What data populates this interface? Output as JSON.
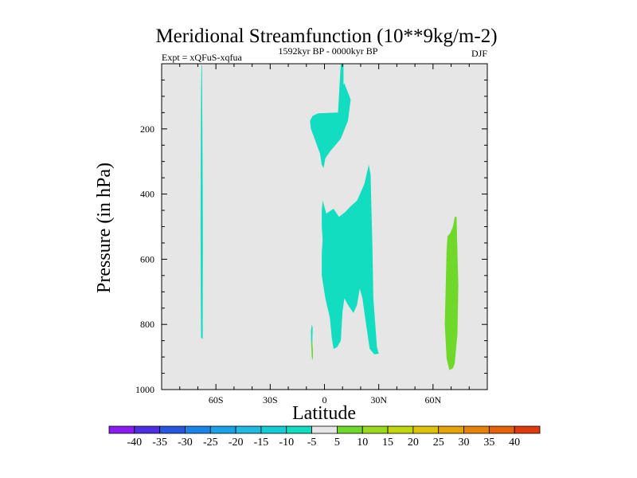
{
  "chart_data": {
    "type": "contour",
    "title": "Meridional Streamfunction (10**9kg/m-2)",
    "left_annotation": "Expt = xQFuS-xqfua",
    "center_annotation": "1592kyr BP - 0000kyr BP",
    "right_annotation": "DJF",
    "xlabel": "Latitude",
    "ylabel": "Pressure (in hPa)",
    "xlim": [
      -90,
      90
    ],
    "ylim": [
      1000,
      0
    ],
    "x_ticks": [
      {
        "value": -60,
        "label": "60S"
      },
      {
        "value": -30,
        "label": "30S"
      },
      {
        "value": 0,
        "label": "0"
      },
      {
        "value": 30,
        "label": "30N"
      },
      {
        "value": 60,
        "label": "60N"
      }
    ],
    "y_ticks": [
      {
        "value": 200,
        "label": "200"
      },
      {
        "value": 400,
        "label": "400"
      },
      {
        "value": 600,
        "label": "600"
      },
      {
        "value": 800,
        "label": "800"
      },
      {
        "value": 1000,
        "label": "1000"
      }
    ],
    "background_color": "#e6e6e6",
    "regions": [
      {
        "name": "neg-southern-narrow",
        "level": "-10 to -5",
        "color": "#13ddc0",
        "points": [
          [
            -68,
            5
          ],
          [
            -67.7,
            5
          ],
          [
            -67.5,
            180
          ],
          [
            -67.3,
            370
          ],
          [
            -67.2,
            560
          ],
          [
            -67.3,
            760
          ],
          [
            -67.3,
            845
          ],
          [
            -68.2,
            840
          ],
          [
            -68.4,
            700
          ],
          [
            -68.5,
            480
          ],
          [
            -68.4,
            260
          ],
          [
            -68.2,
            90
          ]
        ]
      },
      {
        "name": "neg-upper-tropics",
        "level": "-10 to -5",
        "color": "#13ddc0",
        "points": [
          [
            9,
            0
          ],
          [
            10.5,
            0
          ],
          [
            10.5,
            65
          ],
          [
            11,
            60
          ],
          [
            14.5,
            110
          ],
          [
            13,
            175
          ],
          [
            9,
            230
          ],
          [
            3,
            270
          ],
          [
            0.5,
            290
          ],
          [
            -0.5,
            320
          ],
          [
            -1.5,
            310
          ],
          [
            -2.5,
            275
          ],
          [
            -7.5,
            200
          ],
          [
            -8,
            175
          ],
          [
            -6.5,
            160
          ],
          [
            -3.5,
            152
          ],
          [
            7.5,
            150
          ]
        ]
      },
      {
        "name": "neg-lower-tropics",
        "level": "-10 to -5",
        "color": "#13ddc0",
        "points": [
          [
            -1.5,
            450
          ],
          [
            -1,
            420
          ],
          [
            1,
            460
          ],
          [
            5,
            445
          ],
          [
            8,
            470
          ],
          [
            11.5,
            455
          ],
          [
            14,
            440
          ],
          [
            18,
            420
          ],
          [
            22,
            370
          ],
          [
            24.5,
            310
          ],
          [
            25.5,
            340
          ],
          [
            26.5,
            560
          ],
          [
            27,
            720
          ],
          [
            29,
            870
          ],
          [
            30,
            890
          ],
          [
            27.5,
            892
          ],
          [
            25,
            875
          ],
          [
            23,
            800
          ],
          [
            21,
            720
          ],
          [
            19.5,
            690
          ],
          [
            18,
            740
          ],
          [
            16,
            765
          ],
          [
            13,
            740
          ],
          [
            11,
            720
          ],
          [
            10,
            760
          ],
          [
            9,
            850
          ],
          [
            7,
            870
          ],
          [
            5,
            875
          ],
          [
            4,
            840
          ],
          [
            3,
            780
          ],
          [
            0.5,
            720
          ],
          [
            -1.5,
            650
          ],
          [
            -1.5,
            580
          ],
          [
            -1,
            540
          ],
          [
            -1.5,
            500
          ]
        ]
      },
      {
        "name": "neg-small-tropics",
        "level": "-10 to -5",
        "color": "#13ddc0",
        "points": [
          [
            -7,
            800
          ],
          [
            -6.5,
            810
          ],
          [
            -6.8,
            880
          ],
          [
            -7.3,
            870
          ],
          [
            -7.5,
            820
          ]
        ]
      },
      {
        "name": "pos-tiny-tropics",
        "level": "5 to 10",
        "color": "#6fd82a",
        "points": [
          [
            -6.8,
            850
          ],
          [
            -6.4,
            880
          ],
          [
            -6.4,
            910
          ],
          [
            -7,
            900
          ],
          [
            -7.3,
            860
          ]
        ]
      },
      {
        "name": "pos-northern",
        "level": "5 to 10",
        "color": "#6fd82a",
        "points": [
          [
            72,
            470
          ],
          [
            73,
            470
          ],
          [
            73.5,
            580
          ],
          [
            74,
            680
          ],
          [
            73.5,
            830
          ],
          [
            72,
            920
          ],
          [
            71,
            935
          ],
          [
            69,
            940
          ],
          [
            67.5,
            905
          ],
          [
            66.5,
            800
          ],
          [
            67,
            690
          ],
          [
            67.5,
            570
          ],
          [
            68,
            530
          ],
          [
            69.5,
            520
          ],
          [
            71,
            500
          ]
        ]
      }
    ],
    "colorbar": {
      "colors": [
        "#8a1cf0",
        "#4d2ee3",
        "#2556e0",
        "#1a84e8",
        "#19a3e6",
        "#1fbadf",
        "#13cdd8",
        "#13ddc0",
        "#e6e6e6",
        "#6fd82a",
        "#9ad91b",
        "#c2d70f",
        "#dec30c",
        "#e5a409",
        "#e58208",
        "#e5620b",
        "#e03a0c"
      ],
      "labels": [
        "-40",
        "-35",
        "-30",
        "-25",
        "-20",
        "-15",
        "-10",
        "-5",
        "5",
        "10",
        "15",
        "20",
        "25",
        "30",
        "35",
        "40"
      ]
    }
  }
}
